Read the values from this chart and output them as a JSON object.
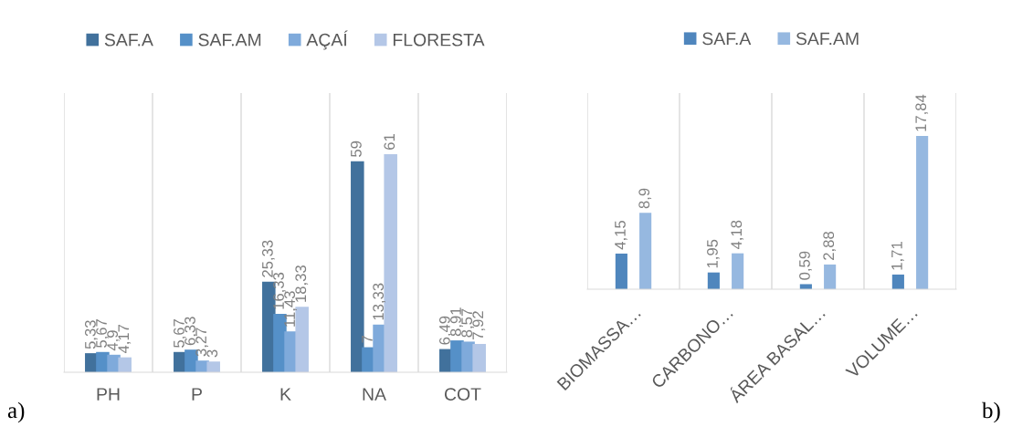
{
  "chart_data": [
    {
      "type": "bar",
      "categories": [
        "PH",
        "P",
        "K",
        "NA",
        "COT"
      ],
      "series": [
        {
          "name": "SAF.A",
          "color": "#41719c",
          "values": [
            5.33,
            5.67,
            25.33,
            59,
            6.49
          ],
          "value_labels": [
            "5,33",
            "5,67",
            "25,33",
            "59",
            "6,49"
          ]
        },
        {
          "name": "SAF.AM",
          "color": "#5590c8",
          "values": [
            5.67,
            6.33,
            16.33,
            7,
            8.91
          ],
          "value_labels": [
            "5,67",
            "6,33",
            "16,33",
            "7",
            "8,91"
          ]
        },
        {
          "name": "AÇAÍ",
          "color": "#7faadb",
          "values": [
            4.9,
            3.27,
            11.43,
            13.33,
            8.57
          ],
          "value_labels": [
            "4,9",
            "3,27",
            "11,43",
            "13,33",
            "8,57"
          ]
        },
        {
          "name": "FLORESTA",
          "color": "#b4c7e7",
          "values": [
            4.17,
            3,
            18.33,
            61,
            7.92
          ],
          "value_labels": [
            "4,17",
            "3",
            "18,33",
            "61",
            "7,92"
          ]
        }
      ],
      "legend": "top",
      "grid": "x",
      "tick_labels": "x",
      "annotations": [
        "a)"
      ]
    },
    {
      "type": "bar",
      "categories": [
        "BIOMASSA…",
        "CARBONO…",
        "ÁREA BASAL…",
        "VOLUME…"
      ],
      "series": [
        {
          "name": "SAF.A",
          "color": "#4f86bd",
          "values": [
            4.15,
            1.95,
            0.59,
            1.71
          ],
          "value_labels": [
            "4,15",
            "1,95",
            "0,59",
            "1,71"
          ]
        },
        {
          "name": "SAF.AM",
          "color": "#96b8e0",
          "values": [
            8.9,
            4.18,
            2.88,
            17.84
          ],
          "value_labels": [
            "8,9",
            "4,18",
            "2,88",
            "17,84"
          ]
        }
      ],
      "legend": "top",
      "grid": "x",
      "tick_labels": "x",
      "annotations": [
        "b)"
      ]
    }
  ]
}
